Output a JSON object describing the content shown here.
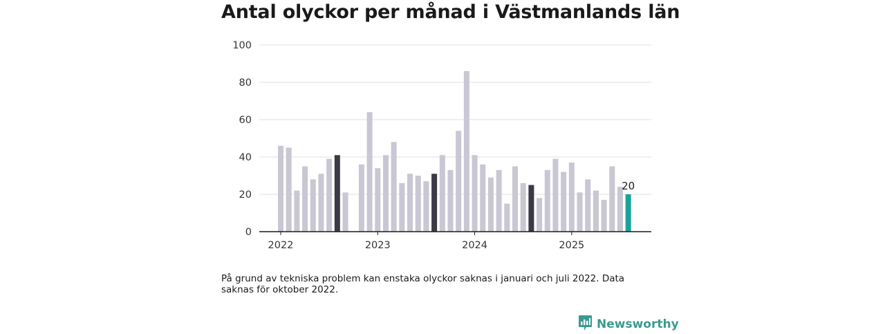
{
  "chart_data": {
    "type": "bar",
    "title": "Antal olyckor per månad i Västmanlands län",
    "xlabel": "",
    "ylabel": "",
    "ylim": [
      0,
      100
    ],
    "yticks": [
      0,
      20,
      40,
      60,
      80,
      100
    ],
    "xtick_labels": [
      {
        "label": "2022",
        "index": 0
      },
      {
        "label": "2023",
        "index": 12
      },
      {
        "label": "2024",
        "index": 24
      },
      {
        "label": "2025",
        "index": 36
      }
    ],
    "grid": true,
    "categories": [
      "2022-01",
      "2022-02",
      "2022-03",
      "2022-04",
      "2022-05",
      "2022-06",
      "2022-07",
      "2022-08",
      "2022-09",
      "2022-10",
      "2022-11",
      "2022-12",
      "2023-01",
      "2023-02",
      "2023-03",
      "2023-04",
      "2023-05",
      "2023-06",
      "2023-07",
      "2023-08",
      "2023-09",
      "2023-10",
      "2023-11",
      "2023-12",
      "2024-01",
      "2024-02",
      "2024-03",
      "2024-04",
      "2024-05",
      "2024-06",
      "2024-07",
      "2024-08",
      "2024-09",
      "2024-10",
      "2024-11",
      "2024-12",
      "2025-01",
      "2025-02",
      "2025-03",
      "2025-04",
      "2025-05",
      "2025-06",
      "2025-07",
      "2025-08"
    ],
    "values": [
      46,
      45,
      22,
      35,
      28,
      31,
      39,
      41,
      21,
      null,
      36,
      64,
      34,
      41,
      48,
      26,
      31,
      30,
      27,
      31,
      41,
      33,
      54,
      86,
      41,
      36,
      29,
      33,
      15,
      35,
      26,
      25,
      18,
      33,
      39,
      32,
      37,
      21,
      28,
      22,
      17,
      35,
      24,
      20
    ],
    "highlight_indices": [
      7,
      19,
      31
    ],
    "latest_index": 43,
    "latest_label": "20",
    "colors": {
      "bar": "#c8c7d3",
      "highlight": "#3a3a45",
      "latest": "#1aa39a",
      "grid": "#e0e0e0",
      "axis": "#1a1a1a"
    }
  },
  "footnote": "På grund av tekniska problem kan enstaka olyckor saknas i januari och juli 2022. Data saknas för oktober 2022.",
  "brand": {
    "name": "Newsworthy",
    "color": "#3a9a90",
    "icon": "bar-chart-speech-bubble-icon"
  }
}
